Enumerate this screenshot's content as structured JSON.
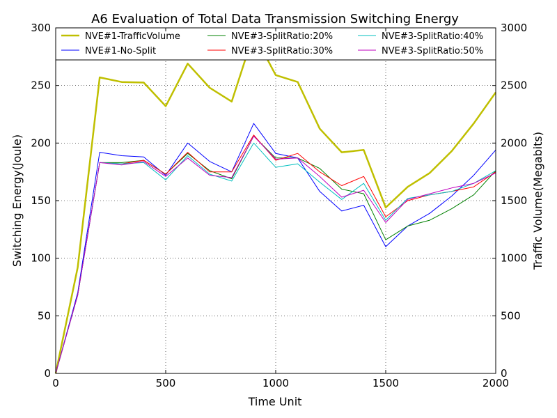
{
  "chart_data": {
    "type": "line",
    "title": "A6 Evaluation of Total Data Transmission Switching Energy",
    "xlabel": "Time Unit",
    "ylabel": "Switching Energy(Joule)",
    "y2label": "Traffic Volume(Megabits)",
    "xlim": [
      0,
      2000
    ],
    "ylim": [
      0,
      300
    ],
    "y2lim": [
      0,
      3000
    ],
    "xticks": [
      0,
      500,
      1000,
      1500,
      2000
    ],
    "yticks": [
      0,
      50,
      100,
      150,
      200,
      250,
      300
    ],
    "y2ticks": [
      0,
      500,
      1000,
      1500,
      2000,
      2500,
      3000
    ],
    "grid": true,
    "legend_position": "top",
    "x": [
      0,
      100,
      200,
      300,
      400,
      500,
      600,
      700,
      800,
      900,
      1000,
      1100,
      1200,
      1300,
      1400,
      1500,
      1600,
      1700,
      1800,
      1900,
      2000
    ],
    "series": [
      {
        "name": "NVE#1-TrafficVolume",
        "axis": "right",
        "color": "#bfbf00",
        "width": 2.5,
        "values": [
          0,
          920,
          2570,
          2530,
          2525,
          2320,
          2690,
          2480,
          2360,
          2950,
          2590,
          2530,
          2125,
          1920,
          1940,
          1440,
          1620,
          1740,
          1930,
          2170,
          2440
        ]
      },
      {
        "name": "NVE#1-No-Split",
        "axis": "left",
        "color": "#0000ff",
        "width": 1,
        "values": [
          0,
          70,
          192,
          189,
          188,
          172,
          200,
          184,
          175,
          217,
          191,
          187,
          158,
          141,
          146,
          110,
          128,
          139,
          154,
          172,
          194
        ]
      },
      {
        "name": "NVE#3-SplitRatio:20%",
        "axis": "left",
        "color": "#008000",
        "width": 1,
        "values": [
          0,
          68,
          183,
          183,
          185,
          173,
          191,
          176,
          169,
          206,
          187,
          187,
          178,
          160,
          156,
          116,
          128,
          133,
          143,
          155,
          176
        ]
      },
      {
        "name": "NVE#3-SplitRatio:30%",
        "axis": "left",
        "color": "#ff0000",
        "width": 1,
        "values": [
          0,
          68,
          183,
          182,
          185,
          173,
          192,
          175,
          175,
          207,
          185,
          191,
          175,
          163,
          171,
          136,
          150,
          155,
          158,
          162,
          175
        ]
      },
      {
        "name": "NVE#3-SplitRatio:40%",
        "axis": "left",
        "color": "#00bfbf",
        "width": 1,
        "values": [
          0,
          68,
          183,
          182,
          183,
          168,
          189,
          173,
          167,
          200,
          179,
          182,
          166,
          151,
          165,
          133,
          152,
          155,
          158,
          165,
          176
        ]
      },
      {
        "name": "NVE#3-SplitRatio:50%",
        "axis": "left",
        "color": "#bf00bf",
        "width": 1,
        "values": [
          0,
          68,
          183,
          181,
          184,
          171,
          187,
          172,
          170,
          206,
          186,
          187,
          171,
          153,
          159,
          131,
          151,
          156,
          161,
          165,
          174
        ]
      }
    ]
  }
}
